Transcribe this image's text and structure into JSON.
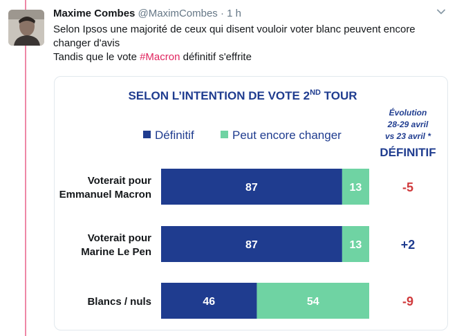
{
  "tweet": {
    "author": "Maxime Combes",
    "handle": "@MaximCombes",
    "separator": "·",
    "time": "1 h",
    "text_line1": "Selon Ipsos une majorité de ceux qui disent vouloir voter blanc peuvent encore",
    "text_line2": "changer d'avis",
    "text_line3_prefix": "Tandis que le vote ",
    "hashtag": "#Macron",
    "text_line3_suffix": " définitif s'effrite"
  },
  "colors": {
    "accent": "#e0245e",
    "definitif": "#1f3c8f",
    "peut_changer": "#6fd3a3",
    "title": "#1f3c8f",
    "negative": "#d0393b",
    "positive": "#1f3c8f"
  },
  "chart_data": {
    "type": "bar",
    "stacked": true,
    "orientation": "horizontal",
    "title_main": "SELON L’INTENTION DE VOTE 2",
    "title_sup": "ND",
    "title_end": " TOUR",
    "legend": [
      {
        "name": "Définitif",
        "color": "#1f3c8f"
      },
      {
        "name": "Peut encore changer",
        "color": "#6fd3a3"
      }
    ],
    "evolution_header": [
      "Évolution",
      "28-29 avril",
      "vs 23 avril *"
    ],
    "evolution_title": "DÉFINITIF",
    "categories": [
      [
        "Voterait pour",
        "Emmanuel Macron"
      ],
      [
        "Voterait pour",
        "Marine Le Pen"
      ],
      [
        "Blancs / nuls"
      ]
    ],
    "series": [
      {
        "name": "Définitif",
        "values": [
          87,
          87,
          46
        ]
      },
      {
        "name": "Peut encore changer",
        "values": [
          13,
          13,
          54
        ]
      }
    ],
    "evolution": [
      "-5",
      "+2",
      "-9"
    ],
    "xlim": [
      0,
      100
    ]
  }
}
